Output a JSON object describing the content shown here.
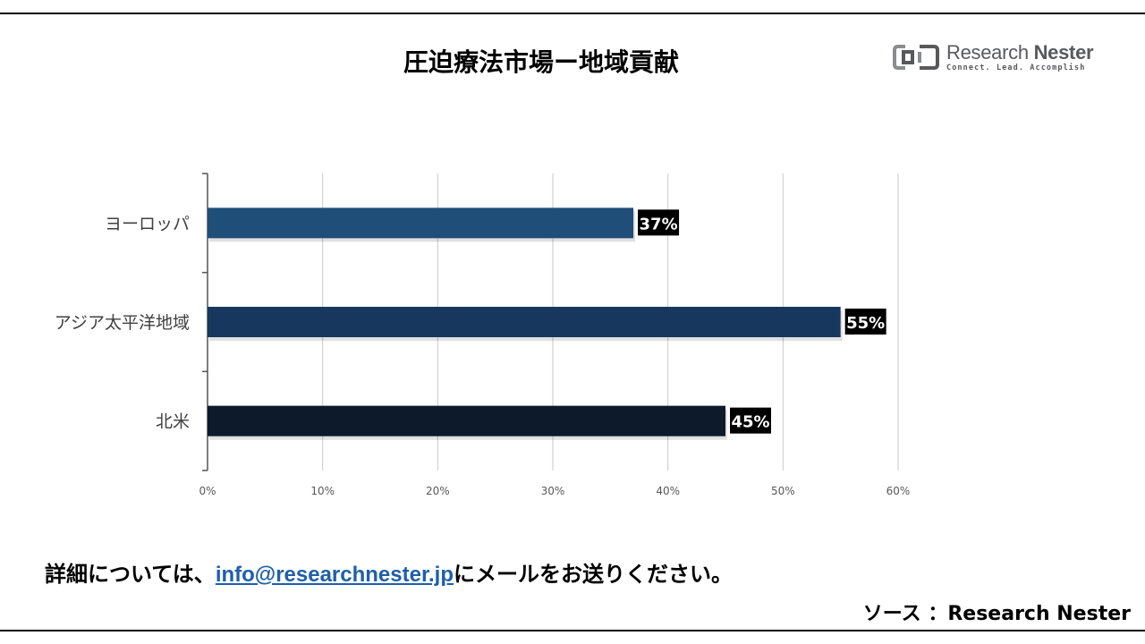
{
  "header": {
    "title": "圧迫療法市場ー地域貢献",
    "logo_word1": "Research",
    "logo_word2": "Nester",
    "logo_tagline": "Connect. Lead. Accomplish"
  },
  "chart_data": {
    "type": "bar",
    "orientation": "horizontal",
    "title": "",
    "xlabel": "",
    "ylabel": "",
    "categories": [
      "ヨーロッパ",
      "アジア太平洋地域",
      "北米"
    ],
    "values": [
      37,
      55,
      45
    ],
    "value_labels": [
      "37%",
      "55%",
      "45%"
    ],
    "bar_colors": [
      "#1f4e79",
      "#17375e",
      "#0c1a2b"
    ],
    "xlim": [
      0,
      60
    ],
    "xticks": [
      0,
      10,
      20,
      30,
      40,
      50,
      60
    ],
    "xtick_labels": [
      "0%",
      "10%",
      "20%",
      "30%",
      "40%",
      "50%",
      "60%"
    ],
    "grid": "vertical",
    "legend": "none"
  },
  "footer": {
    "prefix": "詳細については、",
    "email": "info@researchnester.jp",
    "suffix": "にメールをお送りください。"
  },
  "source": {
    "text": "ソース ：Research Nester"
  }
}
